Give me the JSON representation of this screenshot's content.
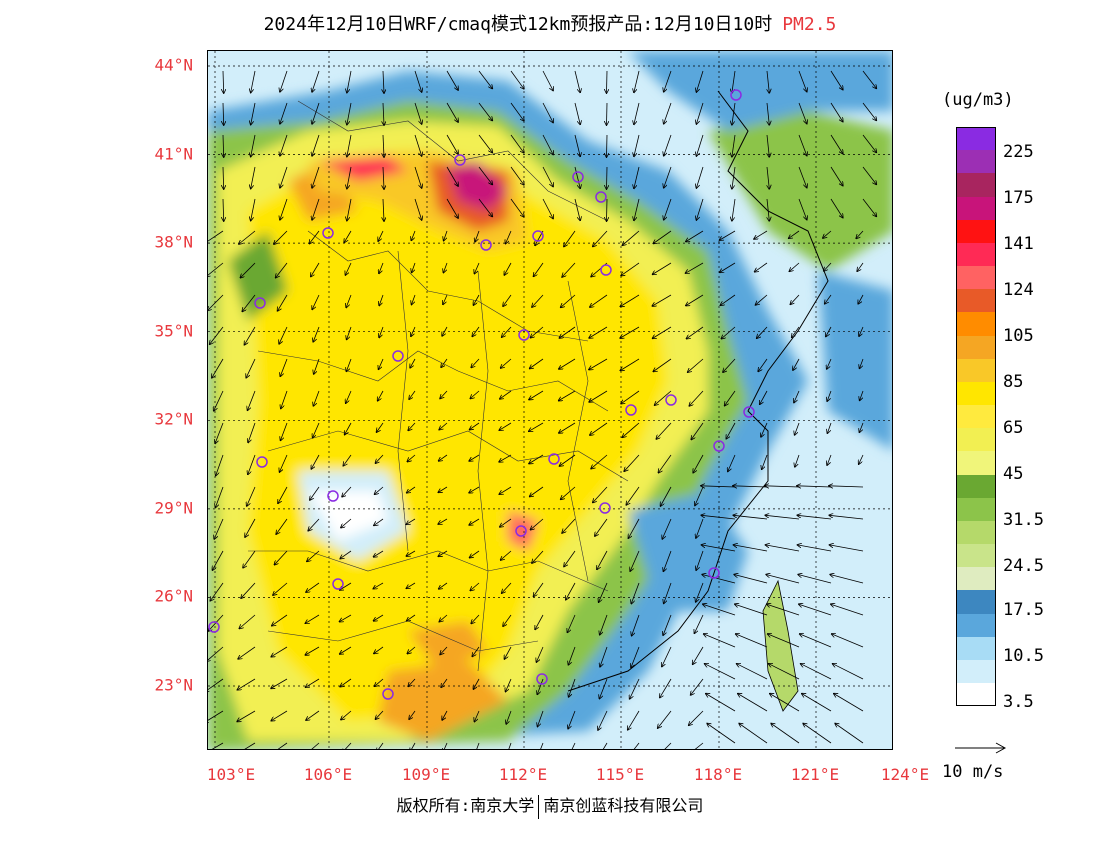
{
  "title": {
    "main": "2024年12月10日WRF/cmaq模式12km预报产品:12月10日10时",
    "pollutant": "PM2.5",
    "pollutant_color": "#e8383d"
  },
  "axes": {
    "lat_labels": [
      "44°N",
      "41°N",
      "38°N",
      "35°N",
      "32°N",
      "29°N",
      "26°N",
      "23°N"
    ],
    "lon_labels": [
      "103°E",
      "106°E",
      "109°E",
      "112°E",
      "115°E",
      "118°E",
      "121°E",
      "124°E"
    ],
    "label_color": "#e8383d"
  },
  "legend": {
    "unit": "(ug/m3)",
    "labels": [
      "225",
      "175",
      "141",
      "124",
      "105",
      "85",
      "65",
      "45",
      "31.5",
      "24.5",
      "17.5",
      "10.5",
      "3.5"
    ],
    "colors": [
      "#8a2be2",
      "#9c2fb4",
      "#a8255f",
      "#c8147a",
      "#ff1212",
      "#ff2a55",
      "#ff6262",
      "#e85a28",
      "#ff8c00",
      "#f5a623",
      "#f9c828",
      "#ffe600",
      "#ffea3e",
      "#f2ef52",
      "#f0f57a",
      "#6aa832",
      "#8cc44a",
      "#b5d96a",
      "#c9e48a",
      "#dfecc0",
      "#3d87c0",
      "#5aa7dc",
      "#a8dcf5",
      "#d2eefa",
      "#ffffff"
    ],
    "wind_ref": "10 m/s"
  },
  "copyright": {
    "left": "版权所有:南京大学",
    "right": "南京创蓝科技有限公司"
  }
}
